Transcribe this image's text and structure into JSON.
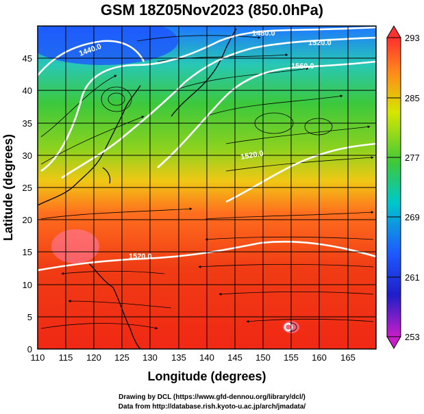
{
  "title": "GSM 18Z05Nov2023 (850.0hPa)",
  "x_axis": {
    "label": "Longitude (degrees)",
    "ticks": [
      "110",
      "115",
      "120",
      "125",
      "130",
      "135",
      "140",
      "145",
      "150",
      "155",
      "160",
      "165"
    ],
    "range": [
      110,
      170
    ]
  },
  "y_axis": {
    "label": "Latitude  (degrees)",
    "ticks": [
      "0",
      "5",
      "10",
      "15",
      "20",
      "25",
      "30",
      "35",
      "40",
      "45"
    ],
    "range": [
      0,
      50
    ]
  },
  "colorbar": {
    "ticks": [
      "293",
      "285",
      "277",
      "269",
      "261",
      "253"
    ],
    "range": [
      253,
      293
    ],
    "colors": [
      "#ff3030",
      "#ff8c1a",
      "#d6e600",
      "#3cc83c",
      "#00c8c8",
      "#1e5aff",
      "#1e1ec8",
      "#c81ec8"
    ]
  },
  "contours": [
    {
      "label": "1440.0"
    },
    {
      "label": "1480.0"
    },
    {
      "label": "1520.0"
    },
    {
      "label": "1560.0"
    },
    {
      "label": "1520.0"
    },
    {
      "label": "1520.0"
    }
  ],
  "credits": {
    "line1": "Drawing by DCL (https://www.gfd-dennou.org/library/dcl/)",
    "line2": "Data from http://database.rish.kyoto-u.ac.jp/arch/jmadata/"
  }
}
